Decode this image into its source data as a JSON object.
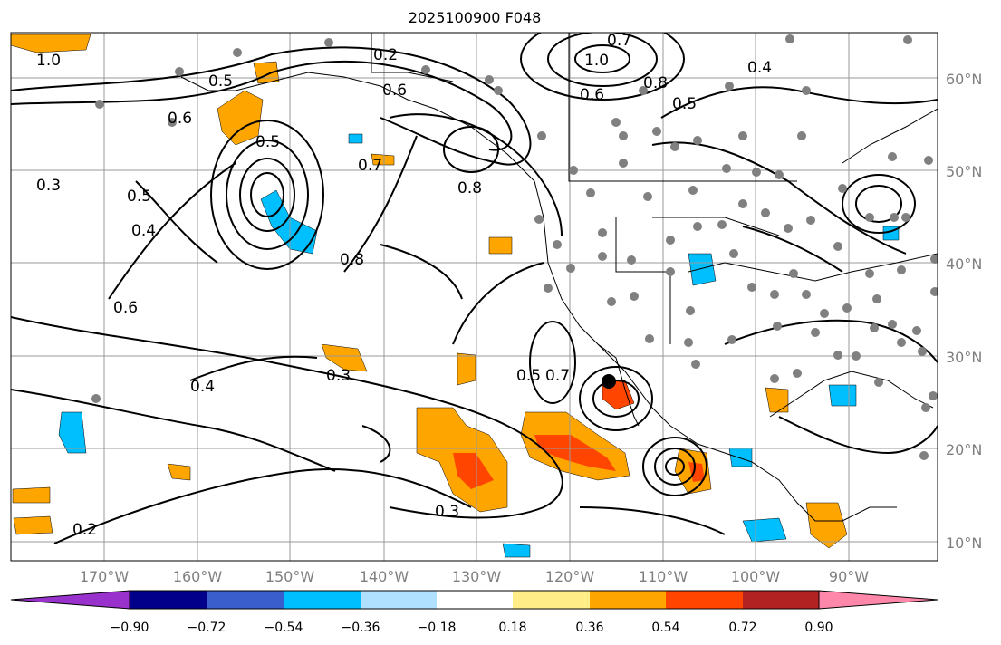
{
  "title": "2025100900 F048",
  "map": {
    "lat_labels": [
      "60°N",
      "50°N",
      "40°N",
      "30°N",
      "20°N",
      "10°N"
    ],
    "lon_labels": [
      "170°W",
      "160°W",
      "150°W",
      "140°W",
      "130°W",
      "120°W",
      "110°W",
      "100°W",
      "90°W"
    ],
    "contour_labels": [
      "0.2",
      "0.3",
      "0.4",
      "0.5",
      "0.6",
      "0.7",
      "0.8",
      "1.0"
    ],
    "gridline_color": "#999999",
    "contour_color": "#000000",
    "station_color": "#808080",
    "marker_color": "#000000"
  },
  "colorbar": {
    "ticks": [
      "−0.90",
      "−0.72",
      "−0.54",
      "−0.36",
      "−0.18",
      "0.18",
      "0.36",
      "0.54",
      "0.72",
      "0.90"
    ],
    "colors": [
      "#9932cc",
      "#00008b",
      "#3a5fcd",
      "#00bfff",
      "#b0e0ff",
      "#ffffff",
      "#ffee88",
      "#ffa500",
      "#ff4500",
      "#b22222",
      "#ff88aa"
    ]
  }
}
